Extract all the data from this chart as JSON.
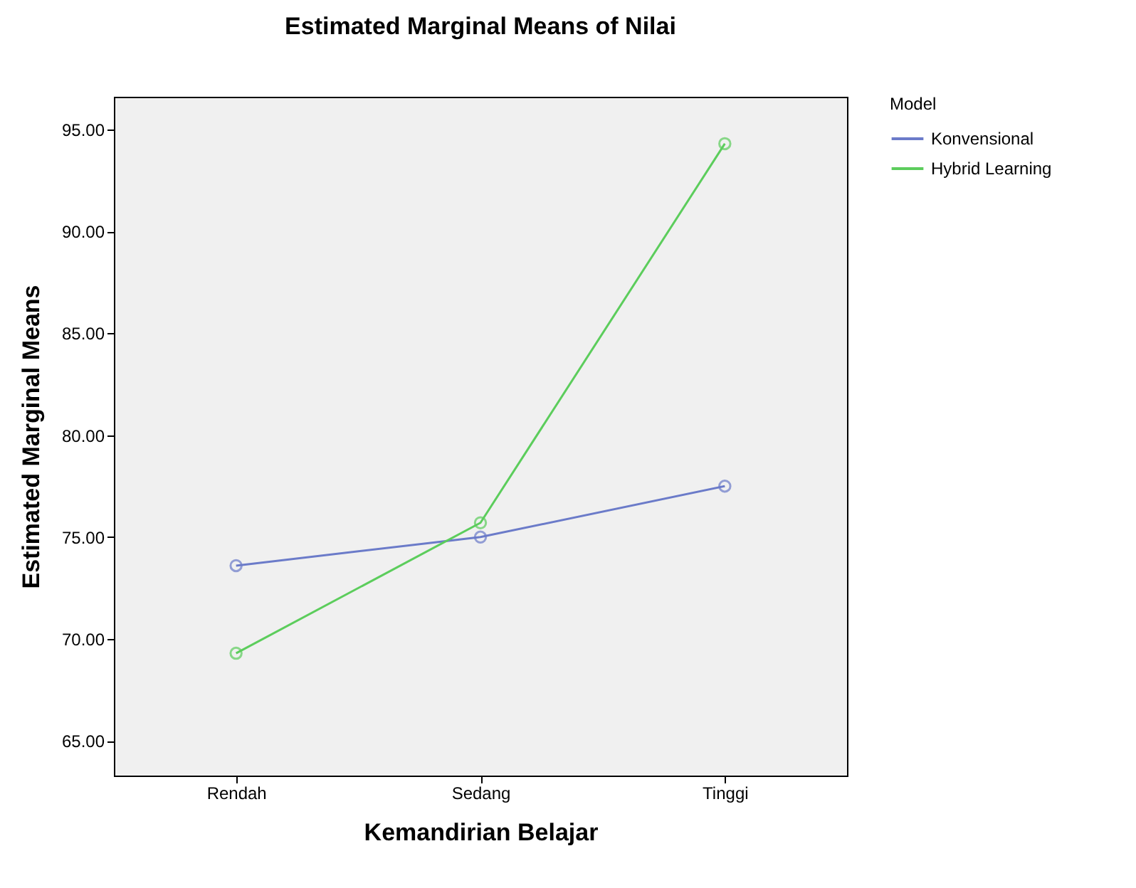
{
  "chart_data": {
    "type": "line",
    "title": "Estimated Marginal Means of Nilai",
    "xlabel": "Kemandirian Belajar",
    "ylabel": "Estimated Marginal Means",
    "legend_title": "Model",
    "categories": [
      "Rendah",
      "Sedang",
      "Tinggi"
    ],
    "series": [
      {
        "name": "Konvensional",
        "color": "#6b7bc9",
        "values": [
          73.6,
          75.0,
          77.5
        ]
      },
      {
        "name": "Hybrid Learning",
        "color": "#5ccd5c",
        "values": [
          69.3,
          75.7,
          94.3
        ]
      }
    ],
    "ylim": [
      63.3,
      96.6
    ],
    "yticks": [
      {
        "value": 65,
        "label": "65.00"
      },
      {
        "value": 70,
        "label": "70.00"
      },
      {
        "value": 75,
        "label": "75.00"
      },
      {
        "value": 80,
        "label": "80.00"
      },
      {
        "value": 85,
        "label": "85.00"
      },
      {
        "value": 90,
        "label": "90.00"
      },
      {
        "value": 95,
        "label": "95.00"
      }
    ],
    "grid": false,
    "legend": "top right",
    "marker": "circle",
    "line_style": "solid"
  }
}
